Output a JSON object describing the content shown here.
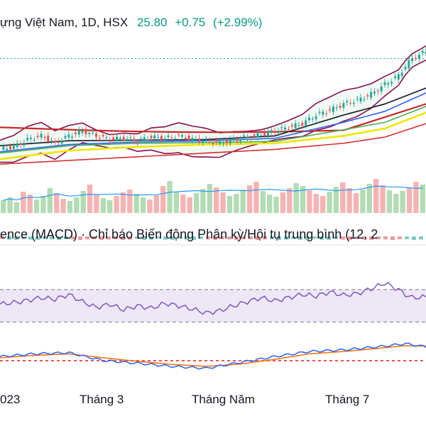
{
  "header": {
    "title": "ựng Việt Nam, 1D, HSX",
    "price": "25.80",
    "change": "+0.75",
    "change_pct": "(+2.99%)"
  },
  "indicator_label": "ence (MACD) · Chỉ báo Biến động Phân kỳ/Hội tụ trung bình (12, 2",
  "colors": {
    "up": "#26a69a",
    "down": "#ef5350",
    "ma_black": "#131722",
    "ma_blue": "#2962ff",
    "ma_yellow": "#f2e600",
    "ma_green": "#4caf50",
    "ma_red": "#d32f2f",
    "band_maroon": "#880e4f",
    "rsi_line": "#7e57c2",
    "rsi_band": "#ede7f6",
    "macd_line": "#2962ff",
    "signal_line": "#ff6d00",
    "dotted_level": "#26a69a"
  },
  "chart_data": {
    "type": "line",
    "title": "ựng Việt Nam, 1D, HSX",
    "x_ticks": [
      "023",
      "Tháng 3",
      "Tháng Năm",
      "Tháng 7"
    ],
    "last_close": 25.8,
    "price_path": [
      [
        0,
        17.8
      ],
      [
        4,
        18.0
      ],
      [
        8,
        18.6
      ],
      [
        12,
        18.9
      ],
      [
        16,
        18.3
      ],
      [
        20,
        18.9
      ],
      [
        24,
        19.3
      ],
      [
        28,
        18.9
      ],
      [
        32,
        18.6
      ],
      [
        36,
        18.7
      ],
      [
        40,
        18.5
      ],
      [
        44,
        18.8
      ],
      [
        48,
        18.7
      ],
      [
        52,
        18.9
      ],
      [
        56,
        18.6
      ],
      [
        60,
        18.5
      ],
      [
        64,
        18.3
      ],
      [
        68,
        18.6
      ],
      [
        72,
        18.8
      ],
      [
        76,
        19.0
      ],
      [
        80,
        19.3
      ],
      [
        84,
        19.6
      ],
      [
        88,
        19.9
      ],
      [
        92,
        20.6
      ],
      [
        96,
        21.0
      ],
      [
        100,
        21.5
      ],
      [
        104,
        21.8
      ],
      [
        108,
        22.3
      ],
      [
        112,
        23.1
      ],
      [
        116,
        23.8
      ],
      [
        118,
        24.6
      ],
      [
        120,
        25.2
      ],
      [
        124,
        25.8
      ]
    ],
    "series": [
      {
        "name": "",
        "color": "#131722",
        "values": [
          [
            0,
            18.1
          ],
          [
            20,
            18.5
          ],
          [
            40,
            18.55
          ],
          [
            60,
            18.6
          ],
          [
            80,
            18.9
          ],
          [
            100,
            20.6
          ],
          [
            112,
            21.5
          ],
          [
            124,
            22.8
          ]
        ]
      },
      {
        "name": "",
        "color": "#2962ff",
        "values": [
          [
            0,
            17.6
          ],
          [
            20,
            18.2
          ],
          [
            40,
            18.4
          ],
          [
            60,
            18.5
          ],
          [
            80,
            18.7
          ],
          [
            100,
            20.0
          ],
          [
            112,
            20.9
          ],
          [
            124,
            22.4
          ]
        ]
      },
      {
        "name": "",
        "color": "#4caf50",
        "values": [
          [
            0,
            17.5
          ],
          [
            20,
            18.1
          ],
          [
            40,
            18.3
          ],
          [
            60,
            18.35
          ],
          [
            80,
            18.45
          ],
          [
            100,
            19.4
          ],
          [
            112,
            20.0
          ],
          [
            124,
            21.3
          ]
        ]
      },
      {
        "name": "",
        "color": "#f2e600",
        "values": [
          [
            0,
            17.0
          ],
          [
            20,
            17.7
          ],
          [
            40,
            18.0
          ],
          [
            60,
            18.2
          ],
          [
            80,
            18.3
          ],
          [
            100,
            18.9
          ],
          [
            112,
            19.5
          ],
          [
            124,
            20.8
          ]
        ]
      },
      {
        "name": "",
        "color": "#d32f2f",
        "values": [
          [
            0,
            16.6
          ],
          [
            20,
            16.9
          ],
          [
            40,
            17.2
          ],
          [
            60,
            17.5
          ],
          [
            80,
            17.8
          ],
          [
            100,
            18.3
          ],
          [
            112,
            18.8
          ],
          [
            124,
            19.9
          ]
        ]
      }
    ],
    "volume": [
      18,
      22,
      15,
      30,
      26,
      19,
      24,
      35,
      28,
      20,
      17,
      22,
      31,
      40,
      26,
      21,
      18,
      24,
      29,
      33,
      27,
      22,
      19,
      25,
      38,
      45,
      30,
      26,
      22,
      28,
      34,
      41,
      36,
      29,
      24,
      27,
      33,
      39,
      44,
      31,
      26,
      23,
      29,
      35,
      42,
      38,
      32,
      27,
      24,
      30,
      37,
      43,
      35,
      28,
      33,
      41,
      48,
      39,
      32,
      27,
      31,
      36,
      44,
      40
    ],
    "rsi": {
      "upper": 70,
      "lower": 30,
      "values": [
        [
          0,
          52
        ],
        [
          6,
          55
        ],
        [
          12,
          60
        ],
        [
          16,
          58
        ],
        [
          20,
          64
        ],
        [
          24,
          55
        ],
        [
          28,
          48
        ],
        [
          32,
          52
        ],
        [
          36,
          45
        ],
        [
          40,
          50
        ],
        [
          44,
          47
        ],
        [
          48,
          53
        ],
        [
          52,
          50
        ],
        [
          56,
          46
        ],
        [
          60,
          41
        ],
        [
          64,
          44
        ],
        [
          68,
          50
        ],
        [
          72,
          55
        ],
        [
          76,
          60
        ],
        [
          80,
          56
        ],
        [
          84,
          60
        ],
        [
          88,
          64
        ],
        [
          92,
          62
        ],
        [
          96,
          67
        ],
        [
          100,
          63
        ],
        [
          104,
          65
        ],
        [
          108,
          71
        ],
        [
          112,
          78
        ],
        [
          116,
          70
        ],
        [
          118,
          64
        ],
        [
          120,
          60
        ],
        [
          124,
          61
        ]
      ]
    },
    "macd": {
      "macd": [
        [
          0,
          0.05
        ],
        [
          10,
          0.12
        ],
        [
          20,
          0.15
        ],
        [
          30,
          -0.05
        ],
        [
          40,
          -0.12
        ],
        [
          50,
          -0.2
        ],
        [
          60,
          -0.25
        ],
        [
          70,
          -0.1
        ],
        [
          80,
          0.05
        ],
        [
          90,
          0.18
        ],
        [
          100,
          0.22
        ],
        [
          110,
          0.3
        ],
        [
          118,
          0.38
        ],
        [
          124,
          0.3
        ]
      ],
      "signal": [
        [
          0,
          0.02
        ],
        [
          10,
          0.08
        ],
        [
          20,
          0.12
        ],
        [
          30,
          0.02
        ],
        [
          40,
          -0.07
        ],
        [
          50,
          -0.15
        ],
        [
          60,
          -0.2
        ],
        [
          70,
          -0.14
        ],
        [
          80,
          -0.02
        ],
        [
          90,
          0.12
        ],
        [
          100,
          0.18
        ],
        [
          110,
          0.26
        ],
        [
          118,
          0.33
        ],
        [
          124,
          0.32
        ]
      ]
    }
  }
}
